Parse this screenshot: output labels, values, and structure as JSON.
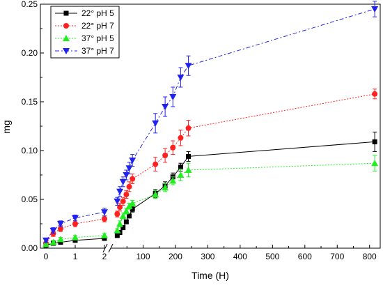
{
  "chart_data": {
    "type": "line",
    "xlabel": "Time (H)",
    "ylabel": "mg",
    "ylim": [
      0,
      0.25
    ],
    "x_axis_break": {
      "left_range": [
        0,
        2
      ],
      "right_range": [
        2,
        820
      ],
      "mark": "//"
    },
    "x_ticks_left": [
      "0",
      "1",
      "2"
    ],
    "x_ticks_right": [
      "100",
      "200",
      "300",
      "400",
      "500",
      "600",
      "700",
      "800"
    ],
    "y_ticks": [
      "0.00",
      "0.05",
      "0.10",
      "0.15",
      "0.20",
      "0.25"
    ],
    "legend_placement": "top-left",
    "grid": false,
    "x": [
      0,
      0.25,
      0.5,
      1,
      2,
      20,
      28,
      38,
      48,
      57,
      67,
      138,
      168,
      192,
      216,
      240,
      816
    ],
    "series": [
      {
        "name": "22° pH 5",
        "style": {
          "color": "#000000",
          "marker": "square",
          "dash": "solid"
        },
        "values": [
          0.003,
          0.005,
          0.006,
          0.008,
          0.01,
          0.013,
          0.016,
          0.021,
          0.027,
          0.033,
          0.04,
          0.056,
          0.064,
          0.073,
          0.083,
          0.094,
          0.109
        ],
        "errors": [
          0.001,
          0.001,
          0.001,
          0.001,
          0.002,
          0.002,
          0.002,
          0.002,
          0.002,
          0.002,
          0.003,
          0.004,
          0.004,
          0.004,
          0.004,
          0.005,
          0.01
        ]
      },
      {
        "name": "22° pH 7",
        "style": {
          "color": "#ff2020",
          "marker": "circle",
          "dash": "dot"
        },
        "values": [
          0.005,
          0.015,
          0.02,
          0.025,
          0.03,
          0.035,
          0.042,
          0.048,
          0.055,
          0.063,
          0.071,
          0.086,
          0.095,
          0.103,
          0.113,
          0.123,
          0.158
        ],
        "errors": [
          0.002,
          0.003,
          0.003,
          0.003,
          0.003,
          0.003,
          0.004,
          0.004,
          0.004,
          0.005,
          0.005,
          0.007,
          0.007,
          0.007,
          0.008,
          0.008,
          0.005
        ]
      },
      {
        "name": "37° pH 5",
        "style": {
          "color": "#22ee22",
          "marker": "triangle-up",
          "dash": "dot"
        },
        "values": [
          0.004,
          0.006,
          0.009,
          0.011,
          0.013,
          0.018,
          0.025,
          0.033,
          0.038,
          0.043,
          0.046,
          0.055,
          0.062,
          0.069,
          0.075,
          0.08,
          0.087
        ],
        "errors": [
          0.001,
          0.002,
          0.002,
          0.002,
          0.002,
          0.002,
          0.003,
          0.003,
          0.003,
          0.003,
          0.003,
          0.004,
          0.004,
          0.004,
          0.006,
          0.007,
          0.008
        ]
      },
      {
        "name": "37° pH 7",
        "style": {
          "color": "#2222ee",
          "marker": "triangle-down",
          "dash": "dashdot"
        },
        "values": [
          0.008,
          0.018,
          0.025,
          0.031,
          0.037,
          0.048,
          0.058,
          0.068,
          0.075,
          0.082,
          0.09,
          0.128,
          0.145,
          0.155,
          0.175,
          0.187,
          0.245
        ],
        "errors": [
          0.002,
          0.003,
          0.003,
          0.003,
          0.004,
          0.004,
          0.005,
          0.005,
          0.005,
          0.006,
          0.006,
          0.01,
          0.01,
          0.01,
          0.01,
          0.01,
          0.008
        ]
      }
    ]
  }
}
